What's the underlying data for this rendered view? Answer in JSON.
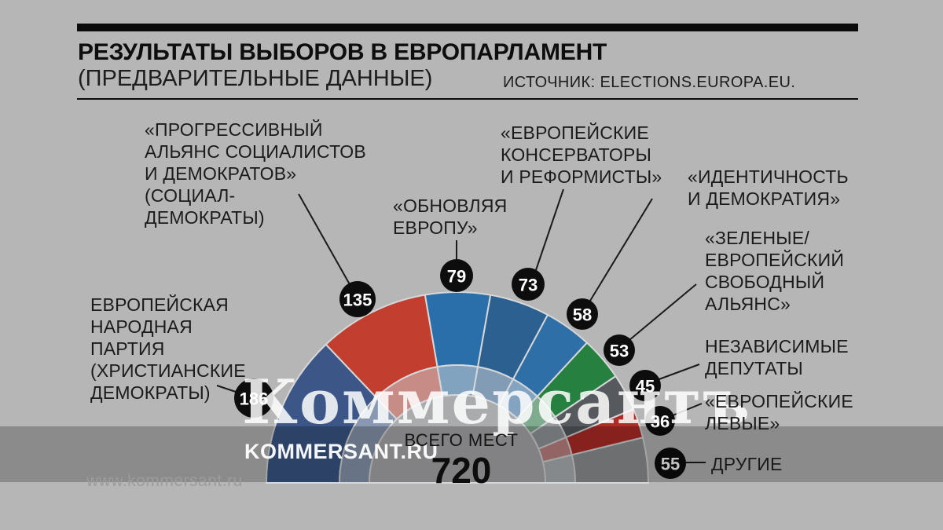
{
  "header": {
    "title": "РЕЗУЛЬТАТЫ ВЫБОРОВ В ЕВРОПАРЛАМЕНТ",
    "subtitle": "(ПРЕДВАРИТЕЛЬНЫЕ ДАННЫЕ)",
    "source": "ИСТОЧНИК: ELECTIONS.EUROPA.EU."
  },
  "watermark": {
    "logo": "Коммерсантъ",
    "site": "KOMMERSANT.RU",
    "url": "www.kommersant.ru"
  },
  "center": {
    "label": "ВСЕГО МЕСТ",
    "total": "720"
  },
  "chart_data": {
    "type": "pie",
    "variant": "hemicycle",
    "title": "РЕЗУЛЬТАТЫ ВЫБОРОВ В ЕВРОПАРЛАМЕНТ (ПРЕДВАРИТЕЛЬНЫЕ ДАННЫЕ)",
    "source": "ELECTIONS.EUROPA.EU",
    "total_seats": 720,
    "total_label": "ВСЕГО МЕСТ",
    "series": [
      {
        "name": "ЕВРОПЕЙСКАЯ НАРОДНАЯ ПАРТИЯ (ХРИСТИАНСКИЕ ДЕМОКРАТЫ)",
        "seats": 186,
        "color": "#3c5787",
        "label_lines": [
          "ЕВРОПЕЙСКАЯ",
          "НАРОДНАЯ",
          "ПАРТИЯ",
          "(ХРИСТИАНСКИЕ",
          "ДЕМОКРАТЫ)"
        ]
      },
      {
        "name": "«ПРОГРЕССИВНЫЙ АЛЬЯНС СОЦИАЛИСТОВ И ДЕМОКРАТОВ» (СОЦИАЛ-ДЕМОКРАТЫ)",
        "seats": 135,
        "color": "#c23e2e",
        "label_lines": [
          "«ПРОГРЕССИВНЫЙ",
          "АЛЬЯНС СОЦИАЛИСТОВ",
          "И ДЕМОКРАТОВ»",
          "(СОЦИАЛ-",
          "ДЕМОКРАТЫ)"
        ]
      },
      {
        "name": "«ОБНОВЛЯЯ ЕВРОПУ»",
        "seats": 79,
        "color": "#2a6fa9",
        "label_lines": [
          "«ОБНОВЛЯЯ",
          "ЕВРОПУ»"
        ]
      },
      {
        "name": "«ЕВРОПЕЙСКИЕ КОНСЕРВАТОРЫ И РЕФОРМИСТЫ»",
        "seats": 73,
        "color": "#2c6090",
        "label_lines": [
          "«ЕВРОПЕЙСКИЕ",
          "КОНСЕРВАТОРЫ",
          "И РЕФОРМИСТЫ»"
        ]
      },
      {
        "name": "«ИДЕНТИЧНОСТЬ И ДЕМОКРАТИЯ»",
        "seats": 58,
        "color": "#2f6fa8",
        "label_lines": [
          "«ИДЕНТИЧНОСТЬ",
          "И ДЕМОКРАТИЯ»"
        ]
      },
      {
        "name": "«ЗЕЛЕНЫЕ/ЕВРОПЕЙСКИЙ СВОБОДНЫЙ АЛЬЯНС»",
        "seats": 53,
        "color": "#26803f",
        "label_lines": [
          "«ЗЕЛЕНЫЕ/",
          "ЕВРОПЕЙСКИЙ",
          "СВОБОДНЫЙ",
          "АЛЬЯНС»"
        ]
      },
      {
        "name": "НЕЗАВИСИМЫЕ ДЕПУТАТЫ",
        "seats": 45,
        "color": "#565a5e",
        "label_lines": [
          "НЕЗАВИСИМЫЕ",
          "ДЕПУТАТЫ"
        ]
      },
      {
        "name": "«ЕВРОПЕЙСКИЕ ЛЕВЫЕ»",
        "seats": 36,
        "color": "#b02c27",
        "label_lines": [
          "«ЕВРОПЕЙСКИЕ",
          "ЛЕВЫЕ»"
        ]
      },
      {
        "name": "ДРУГИЕ",
        "seats": 55,
        "color": "#8f9194",
        "label_lines": [
          "ДРУГИЕ"
        ]
      }
    ]
  }
}
